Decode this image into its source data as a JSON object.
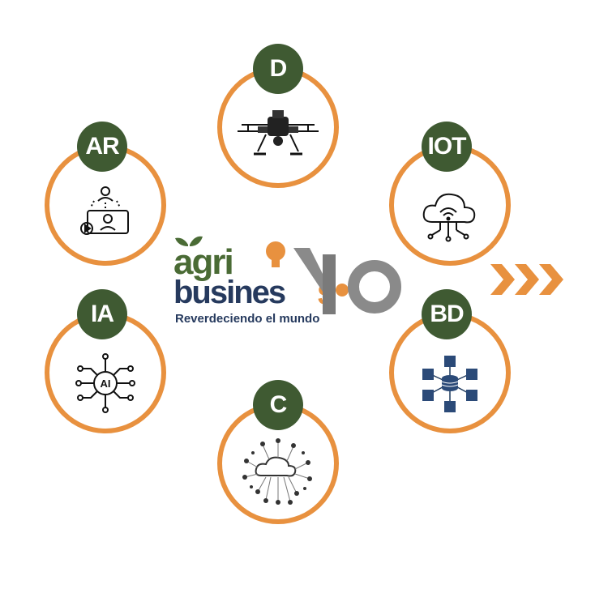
{
  "nodes": {
    "d": {
      "label": "D"
    },
    "ar": {
      "label": "AR"
    },
    "iot": {
      "label": "IOT"
    },
    "ia": {
      "label": "IA"
    },
    "bd": {
      "label": "BD"
    },
    "c": {
      "label": "C"
    }
  },
  "logo": {
    "line1": "agri",
    "line2": "busines",
    "version": "4.0",
    "tagline": "Reverdeciendo el mundo"
  },
  "icons": {
    "d": "drone-icon",
    "ar": "augmented-reality-icon",
    "iot": "cloud-wifi-icon",
    "ia": "ai-chip-icon",
    "bd": "big-data-cubes-icon",
    "c": "cloud-network-icon"
  },
  "colors": {
    "ring": "#e8913f",
    "badge": "#3f5a32",
    "logo_green": "#4a6b35",
    "logo_navy": "#263a5e",
    "logo_gray": "#8a8a8a",
    "arrows": "#e8913f"
  }
}
